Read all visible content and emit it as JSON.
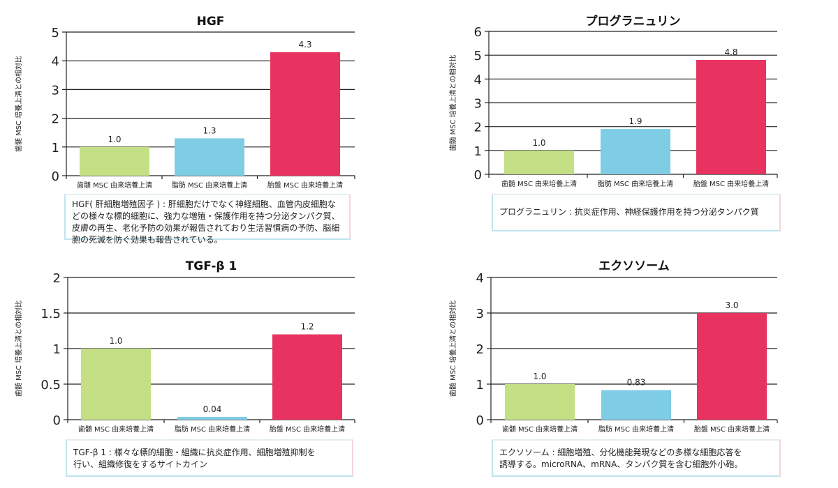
{
  "chart_data": [
    {
      "type": "bar",
      "title": "HGF",
      "ylabel": "歯髄 MSC 培養上清との相対比",
      "categories": [
        "歯髄 MSC 由来培養上清",
        "脂肪 MSC 由来培養上清",
        "胎盤 MSC 由来培養上清"
      ],
      "values": [
        1.0,
        1.3,
        4.3
      ],
      "value_labels": [
        "1.0",
        "1.3",
        "4.3"
      ],
      "ylim": [
        0,
        5
      ],
      "yticks": [
        0,
        1,
        2,
        3,
        4,
        5
      ],
      "ytick_labels": [
        "0",
        "1",
        "2",
        "3",
        "4",
        "5"
      ],
      "colors": [
        "#c5df85",
        "#7ecde4",
        "#e83260"
      ],
      "grid": true,
      "description": [
        "HGF( 肝細胞増殖因子 ) : 肝細胞だけでなく神経細胞、血管内皮細胞な",
        "どの様々な標的細胞に、強力な増殖・保護作用を持つ分泌タンパク質、",
        "皮膚の再生、老化予防の効果が報告されており生活習慣病の予防、脳細",
        "胞の死滅を防ぐ効果も報告されている。"
      ]
    },
    {
      "type": "bar",
      "title": "プログラニュリン",
      "ylabel": "歯髄 MSC 培養上清との相対比",
      "categories": [
        "歯髄 MSC 由来培養上清",
        "脂肪 MSC 由来培養上清",
        "胎盤 MSC 由来培養上清"
      ],
      "values": [
        1.0,
        1.9,
        4.8
      ],
      "value_labels": [
        "1.0",
        "1.9",
        "4.8"
      ],
      "ylim": [
        0,
        6
      ],
      "yticks": [
        0,
        1,
        2,
        3,
        4,
        5,
        6
      ],
      "ytick_labels": [
        "0",
        "1",
        "2",
        "3",
        "4",
        "5",
        "6"
      ],
      "colors": [
        "#c5df85",
        "#7ecde4",
        "#e83260"
      ],
      "grid": true,
      "description": [
        "プログラニュリン : 抗炎症作用、神経保護作用を持つ分泌タンパク質"
      ]
    },
    {
      "type": "bar",
      "title": "TGF-β 1",
      "ylabel": "歯髄 MSC 培養上清との相対比",
      "categories": [
        "歯髄 MSC 由来培養上清",
        "脂肪 MSC 由来培養上清",
        "胎盤 MSC 由来培養上清"
      ],
      "values": [
        1.0,
        0.04,
        1.2
      ],
      "value_labels": [
        "1.0",
        "0.04",
        "1.2"
      ],
      "ylim": [
        0,
        2
      ],
      "yticks": [
        0,
        0.5,
        1,
        1.5,
        2
      ],
      "ytick_labels": [
        "0",
        "0.5",
        "1",
        "1.5",
        "2"
      ],
      "colors": [
        "#c5df85",
        "#7ecde4",
        "#e83260"
      ],
      "grid": true,
      "description": [
        "TGF-β 1 : 様々な標的細胞・組織に抗炎症作用、細胞増殖抑制を",
        "行い、組織修復をするサイトカイン"
      ]
    },
    {
      "type": "bar",
      "title": "エクソソーム",
      "ylabel": "歯髄 MSC 培養上清との相対比",
      "categories": [
        "歯髄 MSC 由来培養上清",
        "脂肪 MSC 由来培養上清",
        "胎盤 MSC 由来培養上清"
      ],
      "values": [
        1.0,
        0.83,
        3.0
      ],
      "value_labels": [
        "1.0",
        "0.83",
        "3.0"
      ],
      "ylim": [
        0,
        4
      ],
      "yticks": [
        0,
        1,
        2,
        3,
        4
      ],
      "ytick_labels": [
        "0",
        "1",
        "2",
        "3",
        "4"
      ],
      "colors": [
        "#c5df85",
        "#7ecde4",
        "#e83260"
      ],
      "grid": true,
      "description": [
        "エクソソーム : 細胞増殖、分化機能発現などの多様な細胞応答を",
        "誘導する。microRNA、mRNA、タンパク質を含む細胞外小砲。"
      ]
    }
  ]
}
